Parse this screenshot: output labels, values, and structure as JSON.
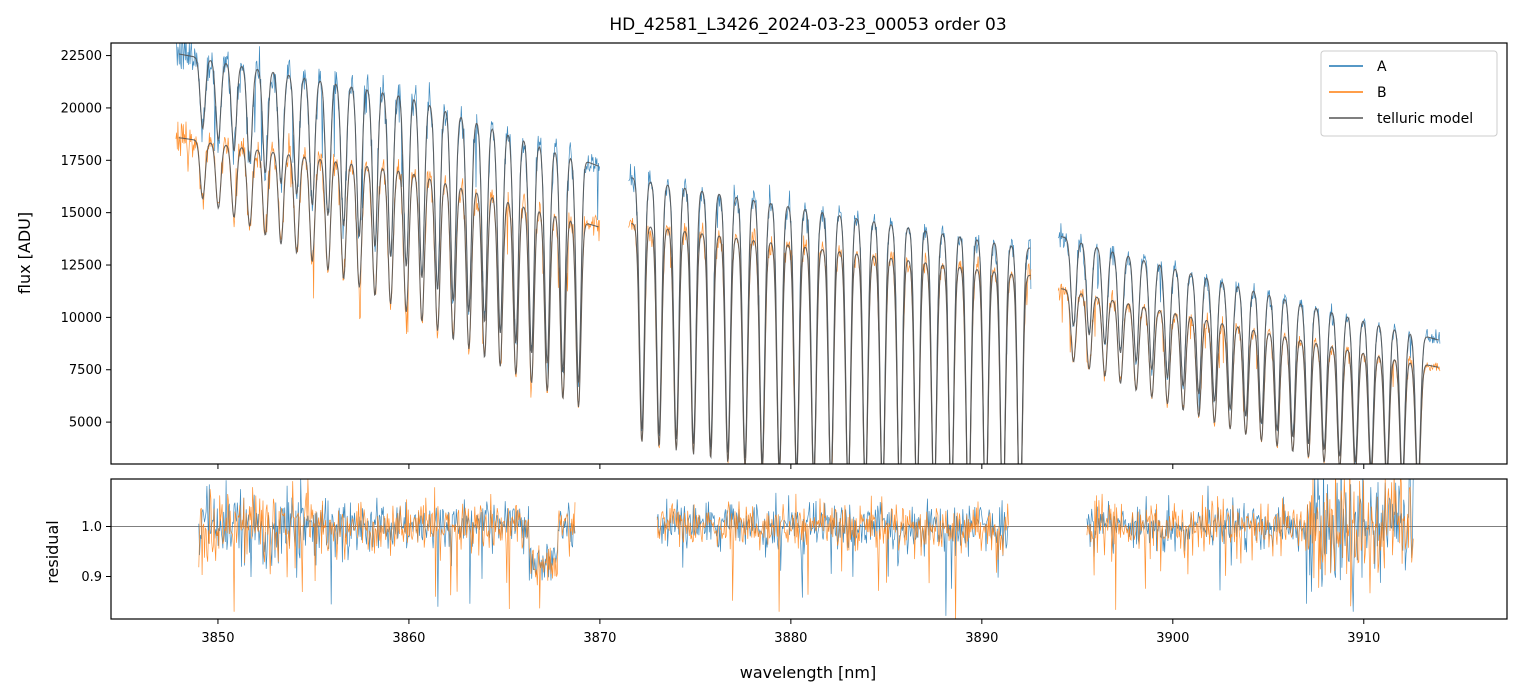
{
  "chart_data": [
    {
      "type": "line",
      "name": "flux-panel",
      "title": "HD_42581_L3426_2024-03-23_00053  order 03",
      "xlabel": "",
      "ylabel": "flux [ADU]",
      "xlim": [
        3844.4,
        3917.5
      ],
      "ylim": [
        3000,
        23100
      ],
      "xticks": [
        3850,
        3860,
        3870,
        3880,
        3890,
        3900,
        3910
      ],
      "yticks": [
        5000,
        7500,
        10000,
        12500,
        15000,
        17500,
        20000,
        22500
      ],
      "ytick_labels": [
        "5000",
        "7500",
        "10000",
        "12500",
        "15000",
        "17500",
        "20000",
        "22500"
      ],
      "legend_position": "top-right",
      "segments": [
        [
          3847.8,
          3870.0
        ],
        [
          3871.5,
          3892.6
        ],
        [
          3894.0,
          3914.0
        ]
      ],
      "series": [
        {
          "name": "A",
          "color": "#1f77b4",
          "continuum": [
            [
              3847.8,
              22600
            ],
            [
              3860,
              20600
            ],
            [
              3870,
              17200
            ],
            [
              3871.5,
              16700
            ],
            [
              3892.6,
              13300
            ],
            [
              3894.0,
              13900
            ],
            [
              3914.0,
              8900
            ]
          ]
        },
        {
          "name": "B",
          "color": "#ff7f0e",
          "continuum": [
            [
              3847.8,
              18600
            ],
            [
              3860,
              17000
            ],
            [
              3870,
              14300
            ],
            [
              3871.5,
              14500
            ],
            [
              3892.6,
              12000
            ],
            [
              3894.0,
              11400
            ],
            [
              3914.0,
              7600
            ]
          ]
        },
        {
          "name": "telluric model",
          "color": "#555555"
        }
      ],
      "legend": [
        "A",
        "B",
        "telluric model"
      ]
    },
    {
      "type": "line",
      "name": "residual-panel",
      "xlabel": "wavelength [nm]",
      "ylabel": "residual",
      "xlim": [
        3844.4,
        3917.5
      ],
      "ylim": [
        0.815,
        1.095
      ],
      "xticks": [
        3850,
        3860,
        3870,
        3880,
        3890,
        3900,
        3910
      ],
      "xtick_labels": [
        "3850",
        "3860",
        "3870",
        "3880",
        "3890",
        "3900",
        "3910"
      ],
      "yticks": [
        0.9,
        1.0
      ],
      "ytick_labels": [
        "0.9",
        "1.0"
      ],
      "reference_line": 1.0,
      "segments": [
        [
          3849.0,
          3868.7
        ],
        [
          3873.0,
          3891.4
        ],
        [
          3895.5,
          3912.6
        ]
      ],
      "series": [
        {
          "name": "A",
          "color": "#1f77b4"
        },
        {
          "name": "B",
          "color": "#ff7f0e"
        }
      ]
    }
  ]
}
